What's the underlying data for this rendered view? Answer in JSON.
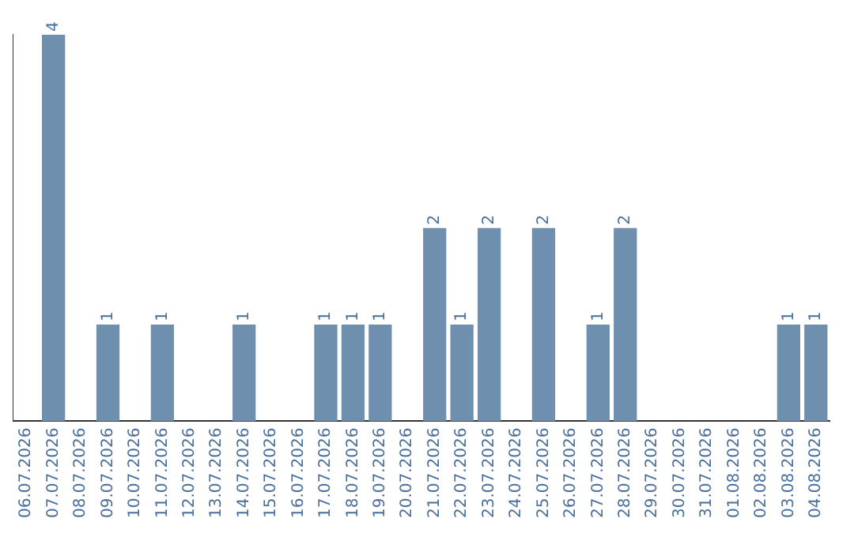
{
  "chart_data": {
    "type": "bar",
    "categories": [
      "06.07.2026",
      "07.07.2026",
      "08.07.2026",
      "09.07.2026",
      "10.07.2026",
      "11.07.2026",
      "12.07.2026",
      "13.07.2026",
      "14.07.2026",
      "15.07.2026",
      "16.07.2026",
      "17.07.2026",
      "18.07.2026",
      "19.07.2026",
      "20.07.2026",
      "21.07.2026",
      "22.07.2026",
      "23.07.2026",
      "24.07.2026",
      "25.07.2026",
      "26.07.2026",
      "27.07.2026",
      "28.07.2026",
      "29.07.2026",
      "30.07.2026",
      "31.07.2026",
      "01.08.2026",
      "02.08.2026",
      "03.08.2026",
      "04.08.2026"
    ],
    "values": [
      0,
      4,
      0,
      1,
      0,
      1,
      0,
      0,
      1,
      0,
      0,
      1,
      1,
      1,
      0,
      2,
      1,
      2,
      0,
      2,
      0,
      1,
      2,
      0,
      0,
      0,
      0,
      0,
      1,
      1
    ],
    "value_labels": [
      null,
      "4",
      null,
      "1",
      null,
      "1",
      null,
      null,
      "1",
      null,
      null,
      "1",
      "1",
      "1",
      null,
      "2",
      "1",
      "2",
      null,
      "2",
      null,
      "1",
      "2",
      null,
      null,
      null,
      null,
      null,
      "1",
      "1"
    ],
    "color": "#6e8fad",
    "grid": false,
    "legend": false
  }
}
